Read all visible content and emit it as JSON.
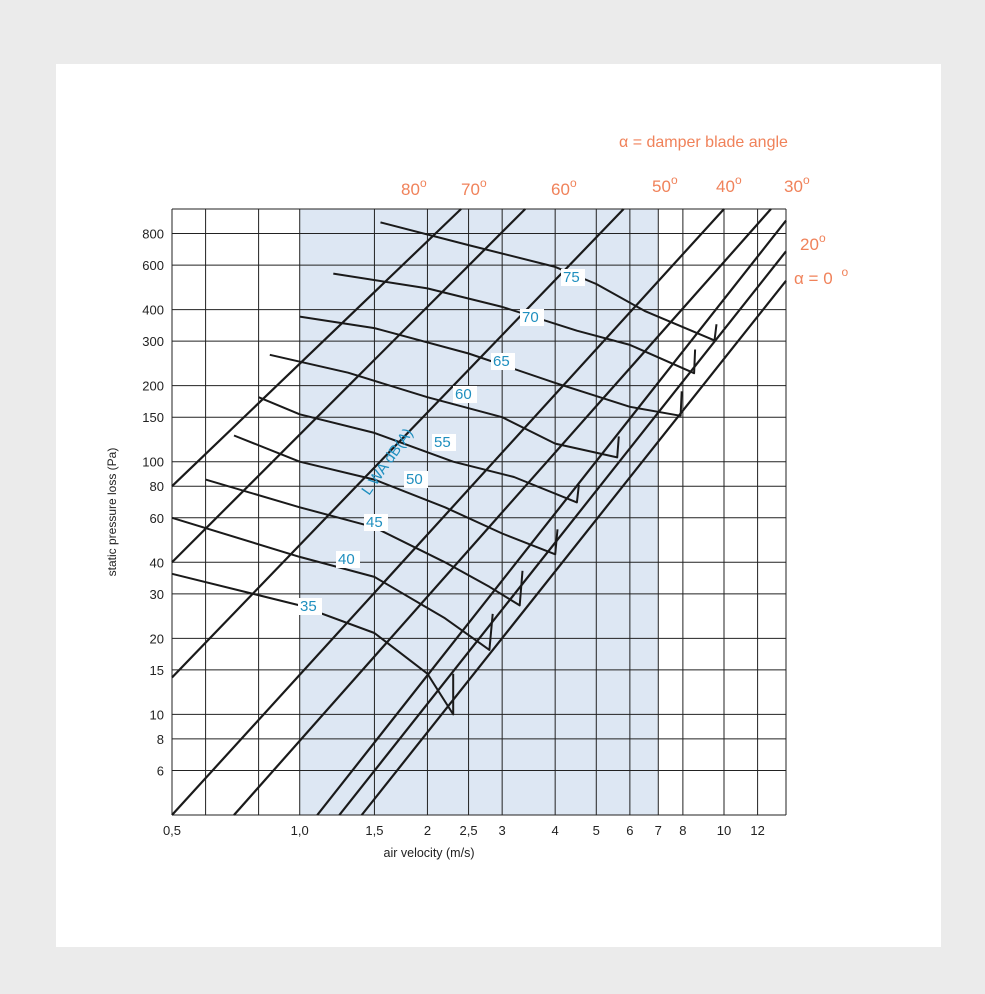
{
  "chart_data": {
    "type": "line",
    "xlabel": "air velocity (m/s)",
    "ylabel": "static pressure loss (Pa)",
    "x_scale": "log",
    "y_scale": "log",
    "xlim": [
      0.5,
      14
    ],
    "ylim": [
      4,
      1000
    ],
    "x_tick_labels": [
      {
        "v": 0.5,
        "label": "0,5"
      },
      {
        "v": 1.0,
        "label": "1,0"
      },
      {
        "v": 1.5,
        "label": "1,5"
      },
      {
        "v": 2,
        "label": "2"
      },
      {
        "v": 2.5,
        "label": "2,5"
      },
      {
        "v": 3,
        "label": "3"
      },
      {
        "v": 4,
        "label": "4"
      },
      {
        "v": 5,
        "label": "5"
      },
      {
        "v": 6,
        "label": "6"
      },
      {
        "v": 7,
        "label": "7"
      },
      {
        "v": 8,
        "label": "8"
      },
      {
        "v": 10,
        "label": "10"
      },
      {
        "v": 12,
        "label": "12"
      }
    ],
    "y_tick_labels": [
      {
        "v": 6,
        "label": "6"
      },
      {
        "v": 8,
        "label": "8"
      },
      {
        "v": 10,
        "label": "10"
      },
      {
        "v": 15,
        "label": "15"
      },
      {
        "v": 20,
        "label": "20"
      },
      {
        "v": 30,
        "label": "30"
      },
      {
        "v": 40,
        "label": "40"
      },
      {
        "v": 60,
        "label": "60"
      },
      {
        "v": 80,
        "label": "80"
      },
      {
        "v": 100,
        "label": "100"
      },
      {
        "v": 150,
        "label": "150"
      },
      {
        "v": 200,
        "label": "200"
      },
      {
        "v": 300,
        "label": "300"
      },
      {
        "v": 400,
        "label": "400"
      },
      {
        "v": 600,
        "label": "600"
      },
      {
        "v": 800,
        "label": "800"
      }
    ],
    "x_grid": [
      0.5,
      0.6,
      0.8,
      1.0,
      1.5,
      2,
      2.5,
      3,
      4,
      5,
      6,
      7,
      8,
      10,
      12,
      14
    ],
    "y_grid": [
      4,
      6,
      8,
      10,
      15,
      20,
      30,
      40,
      60,
      80,
      100,
      150,
      200,
      300,
      400,
      600,
      800,
      1000
    ],
    "shaded_band": {
      "x_from": 1.0,
      "x_to": 7.0,
      "color": "#dde7f3"
    },
    "colors": {
      "grid": "#222222",
      "curves": "#1a1a1a",
      "angle_labels": "#f0825a",
      "level_labels": "#1f8fbf"
    },
    "angle_legend": "α = damper blade angle",
    "damper_angle_lines": [
      {
        "label": "80",
        "unit": "o",
        "points": [
          [
            0.5,
            80
          ],
          [
            2.4,
            1000
          ]
        ]
      },
      {
        "label": "70",
        "unit": "o",
        "points": [
          [
            0.5,
            40
          ],
          [
            3.4,
            1000
          ]
        ]
      },
      {
        "label": "60",
        "unit": "o",
        "points": [
          [
            0.5,
            14
          ],
          [
            5.8,
            1000
          ]
        ]
      },
      {
        "label": "50",
        "unit": "o",
        "points": [
          [
            0.5,
            4
          ],
          [
            10.0,
            1000
          ]
        ]
      },
      {
        "label": "40",
        "unit": "o",
        "points": [
          [
            0.7,
            4
          ],
          [
            12.9,
            1000
          ]
        ]
      },
      {
        "label": "30",
        "unit": "o",
        "points": [
          [
            1.1,
            4
          ],
          [
            14.0,
            900
          ]
        ]
      },
      {
        "label": "20",
        "unit": "o",
        "points": [
          [
            1.24,
            4
          ],
          [
            14.0,
            680
          ]
        ]
      },
      {
        "label": "α = 0",
        "unit": "o",
        "points": [
          [
            1.4,
            4
          ],
          [
            14.0,
            520
          ]
        ]
      }
    ],
    "sound_level_label": "L WA dB(A)",
    "sound_level_curves": [
      {
        "label": "35",
        "points": [
          [
            0.5,
            36
          ],
          [
            1.0,
            27
          ],
          [
            1.5,
            21
          ],
          [
            2.0,
            14.5
          ],
          [
            2.3,
            10
          ],
          [
            2.3,
            14.5
          ]
        ]
      },
      {
        "label": "40",
        "points": [
          [
            0.5,
            60
          ],
          [
            1.0,
            42
          ],
          [
            1.5,
            35
          ],
          [
            2.2,
            24
          ],
          [
            2.8,
            18
          ],
          [
            2.85,
            25
          ]
        ]
      },
      {
        "label": "45",
        "points": [
          [
            0.6,
            85
          ],
          [
            1.0,
            66
          ],
          [
            1.5,
            55
          ],
          [
            2.2,
            40
          ],
          [
            2.8,
            32
          ],
          [
            3.3,
            27
          ],
          [
            3.35,
            37
          ]
        ]
      },
      {
        "label": "50",
        "points": [
          [
            0.7,
            127
          ],
          [
            1.0,
            100
          ],
          [
            1.5,
            85
          ],
          [
            2.2,
            66
          ],
          [
            3.0,
            52
          ],
          [
            4.0,
            43
          ],
          [
            4.05,
            54
          ]
        ]
      },
      {
        "label": "55",
        "points": [
          [
            0.8,
            180
          ],
          [
            1.0,
            154
          ],
          [
            1.5,
            130
          ],
          [
            2.3,
            100
          ],
          [
            3.2,
            87
          ],
          [
            4.5,
            69
          ],
          [
            4.55,
            81
          ]
        ]
      },
      {
        "label": "60",
        "points": [
          [
            0.85,
            265
          ],
          [
            1.3,
            225
          ],
          [
            2.0,
            180
          ],
          [
            3.0,
            150
          ],
          [
            4.0,
            118
          ],
          [
            5.6,
            104
          ],
          [
            5.65,
            126
          ]
        ]
      },
      {
        "label": "65",
        "points": [
          [
            1.0,
            375
          ],
          [
            1.5,
            338
          ],
          [
            2.5,
            268
          ],
          [
            4.0,
            205
          ],
          [
            6.0,
            165
          ],
          [
            7.9,
            152
          ],
          [
            7.95,
            190
          ]
        ]
      },
      {
        "label": "70",
        "points": [
          [
            1.2,
            555
          ],
          [
            2.0,
            485
          ],
          [
            3.0,
            410
          ],
          [
            4.5,
            330
          ],
          [
            6.0,
            290
          ],
          [
            8.5,
            224
          ],
          [
            8.55,
            278
          ]
        ]
      },
      {
        "label": "75",
        "points": [
          [
            1.55,
            885
          ],
          [
            2.5,
            720
          ],
          [
            4.0,
            590
          ],
          [
            5.0,
            505
          ],
          [
            6.5,
            395
          ],
          [
            9.5,
            302
          ],
          [
            9.6,
            350
          ]
        ]
      }
    ]
  }
}
